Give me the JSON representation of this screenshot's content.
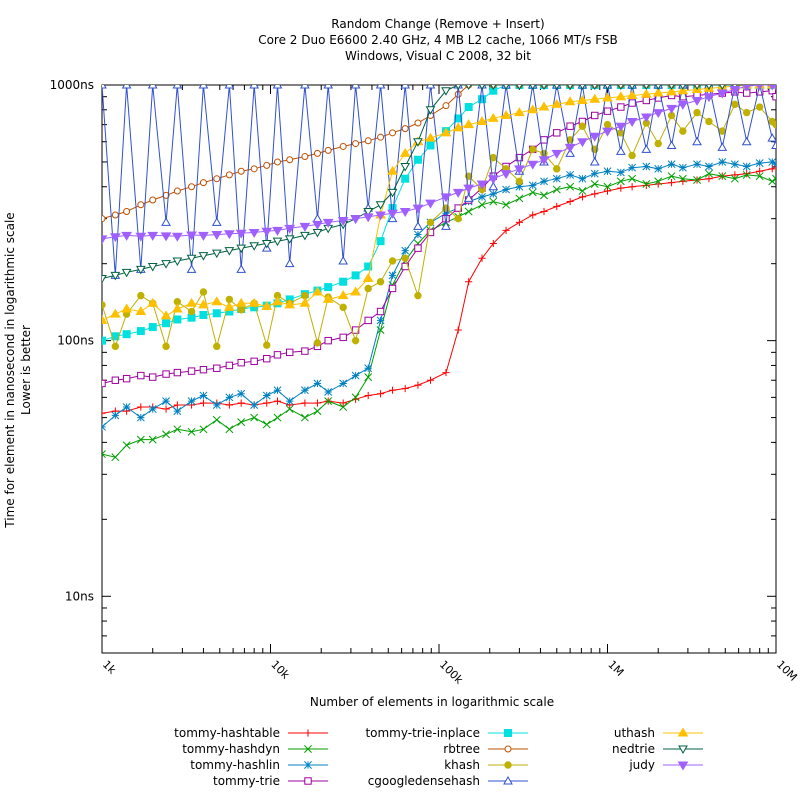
{
  "chart_data": {
    "type": "line",
    "title": [
      "Random Change (Remove + Insert)",
      "Core 2 Duo E6600 2.40 GHz, 4 MB L2 cache, 1066 MT/s FSB",
      "Windows, Visual C 2008, 32 bit"
    ],
    "xlabel": "Number of elements in logarithmic scale",
    "ylabel": [
      "Time for element in nanosecond in logarithmic scale",
      "Lower is better"
    ],
    "x_scale": "log",
    "y_scale": "log",
    "xlim": [
      1000,
      10000000
    ],
    "ylim": [
      6,
      1000
    ],
    "x_ticks": [
      {
        "value": 1000,
        "label": "1k"
      },
      {
        "value": 10000,
        "label": "10k"
      },
      {
        "value": 100000,
        "label": "100k"
      },
      {
        "value": 1000000,
        "label": "1M"
      },
      {
        "value": 10000000,
        "label": "10M"
      }
    ],
    "y_ticks": [
      {
        "value": 10,
        "label": "10ns"
      },
      {
        "value": 100,
        "label": "100ns"
      },
      {
        "value": 1000,
        "label": "1000ns"
      }
    ],
    "grid": false,
    "legend_placement": "bottom",
    "x": [
      1000,
      1200,
      1400,
      1700,
      2000,
      2400,
      2800,
      3400,
      4000,
      4800,
      5700,
      6700,
      8000,
      9500,
      11000,
      13000,
      16000,
      19000,
      22000,
      27000,
      32000,
      38000,
      45000,
      53000,
      63000,
      75000,
      89000,
      110000,
      130000,
      150000,
      180000,
      210000,
      250000,
      300000,
      360000,
      420000,
      500000,
      600000,
      710000,
      840000,
      1000000,
      1200000,
      1400000,
      1700000,
      2000000,
      2400000,
      2800000,
      3400000,
      4000000,
      4800000,
      5700000,
      6700000,
      8000000,
      9500000,
      10000000
    ],
    "series": [
      {
        "name": "tommy-hashtable",
        "color": "#ff0000",
        "marker": "plus",
        "values": [
          52,
          53,
          53,
          55,
          55,
          54,
          56,
          56,
          57,
          57,
          56,
          57,
          56,
          57,
          58,
          56,
          57,
          57,
          58,
          57,
          59,
          61,
          62,
          64,
          65,
          67,
          70,
          75,
          110,
          170,
          210,
          240,
          270,
          290,
          310,
          320,
          335,
          350,
          365,
          375,
          385,
          395,
          400,
          405,
          410,
          415,
          420,
          425,
          430,
          440,
          445,
          450,
          460,
          470,
          480
        ]
      },
      {
        "name": "tommy-hashdyn",
        "color": "#00a000",
        "marker": "x",
        "values": [
          36,
          35,
          39,
          41,
          41,
          43,
          45,
          44,
          45,
          49,
          45,
          48,
          50,
          47,
          50,
          54,
          50,
          53,
          58,
          55,
          60,
          72,
          110,
          165,
          205,
          240,
          270,
          290,
          305,
          320,
          340,
          350,
          340,
          360,
          380,
          370,
          390,
          400,
          385,
          410,
          400,
          420,
          430,
          410,
          420,
          440,
          430,
          425,
          450,
          440,
          430,
          445,
          440,
          420,
          430
        ]
      },
      {
        "name": "tommy-hashlin",
        "color": "#0080c0",
        "marker": "star",
        "values": [
          46,
          51,
          55,
          50,
          54,
          58,
          53,
          58,
          61,
          56,
          60,
          62,
          56,
          61,
          64,
          58,
          64,
          68,
          63,
          68,
          73,
          78,
          120,
          180,
          225,
          260,
          290,
          315,
          330,
          350,
          365,
          375,
          390,
          400,
          405,
          420,
          430,
          445,
          430,
          450,
          460,
          455,
          475,
          480,
          470,
          490,
          475,
          490,
          480,
          500,
          490,
          480,
          495,
          500,
          490
        ]
      },
      {
        "name": "tommy-trie",
        "color": "#a000a0",
        "marker": "square",
        "values": [
          68,
          70,
          71,
          73,
          72,
          74,
          75,
          76,
          77,
          78,
          80,
          82,
          83,
          85,
          88,
          90,
          91,
          95,
          100,
          103,
          110,
          120,
          130,
          160,
          195,
          230,
          265,
          300,
          330,
          355,
          395,
          440,
          480,
          520,
          560,
          610,
          650,
          690,
          720,
          760,
          790,
          820,
          850,
          870,
          890,
          910,
          900,
          910,
          920,
          930,
          940,
          930,
          940,
          950,
          900
        ]
      },
      {
        "name": "tommy-trie-inplace",
        "color": "#00e0e0",
        "marker": "filled-square",
        "values": [
          100,
          104,
          106,
          109,
          113,
          117,
          121,
          123,
          126,
          128,
          130,
          133,
          135,
          137,
          140,
          145,
          152,
          157,
          162,
          170,
          180,
          195,
          245,
          330,
          430,
          510,
          580,
          660,
          740,
          820,
          880,
          950,
          1000,
          1000,
          1000,
          1000,
          1000,
          1000,
          1000,
          1000,
          1000,
          1000,
          1000,
          1000,
          1000,
          1000,
          1000,
          1000,
          1000,
          1000,
          1000,
          1000,
          1000,
          1000,
          1000
        ]
      },
      {
        "name": "rbtree",
        "color": "#c05000",
        "marker": "circle",
        "values": [
          300,
          310,
          320,
          340,
          355,
          370,
          385,
          400,
          415,
          430,
          445,
          460,
          470,
          485,
          500,
          510,
          525,
          540,
          555,
          575,
          590,
          605,
          625,
          650,
          675,
          710,
          760,
          830,
          920,
          1000,
          1000,
          1000,
          1000,
          1000,
          1000,
          1000,
          1000,
          1000,
          1000,
          1000,
          1000,
          1000,
          1000,
          1000,
          1000,
          1000,
          1000,
          1000,
          1000,
          1000,
          1000,
          1000,
          1000,
          1000,
          1000
        ]
      },
      {
        "name": "khash",
        "color": "#c0b000",
        "marker": "filled-circle",
        "values": [
          138,
          95,
          127,
          150,
          140,
          95,
          142,
          130,
          155,
          95,
          145,
          132,
          140,
          96,
          150,
          140,
          150,
          98,
          148,
          135,
          100,
          160,
          170,
          205,
          210,
          150,
          290,
          330,
          300,
          440,
          390,
          520,
          470,
          420,
          560,
          540,
          470,
          610,
          690,
          560,
          700,
          650,
          530,
          710,
          590,
          760,
          660,
          780,
          720,
          660,
          840,
          780,
          820,
          720,
          700
        ]
      },
      {
        "name": "cgoogledensehash",
        "color": "#3050d0",
        "marker": "triangle",
        "values": [
          1000,
          180,
          1000,
          190,
          1000,
          290,
          1000,
          190,
          1000,
          290,
          1000,
          190,
          1000,
          230,
          1000,
          200,
          1000,
          300,
          1000,
          205,
          1000,
          330,
          1000,
          300,
          1000,
          280,
          1000,
          280,
          1000,
          360,
          1000,
          400,
          1000,
          460,
          1000,
          500,
          1000,
          540,
          1000,
          500,
          1000,
          550,
          1000,
          560,
          1000,
          580,
          1000,
          600,
          1000,
          570,
          1000,
          600,
          1000,
          620,
          580
        ]
      },
      {
        "name": "uthash",
        "color": "#ffc000",
        "marker": "filled-triangle",
        "values": [
          120,
          127,
          133,
          130,
          140,
          125,
          133,
          140,
          138,
          142,
          135,
          140,
          140,
          136,
          142,
          138,
          140,
          155,
          145,
          150,
          155,
          175,
          310,
          460,
          540,
          600,
          620,
          650,
          680,
          700,
          720,
          740,
          760,
          780,
          800,
          820,
          840,
          860,
          870,
          880,
          890,
          900,
          910,
          920,
          930,
          940,
          950,
          960,
          970,
          980,
          990,
          1000,
          1000,
          1000,
          1000
        ]
      },
      {
        "name": "nedtrie",
        "color": "#006040",
        "marker": "down-triangle",
        "values": [
          175,
          180,
          185,
          190,
          195,
          200,
          205,
          210,
          215,
          220,
          225,
          230,
          235,
          240,
          245,
          250,
          258,
          265,
          275,
          285,
          300,
          320,
          340,
          380,
          480,
          600,
          800,
          950,
          1000,
          1000,
          1000,
          1000,
          1000,
          1000,
          1000,
          1000,
          1000,
          1000,
          1000,
          1000,
          1000,
          1000,
          1000,
          1000,
          1000,
          1000,
          1000,
          1000,
          1000,
          1000,
          1000,
          1000,
          1000,
          1000,
          1000
        ]
      },
      {
        "name": "judy",
        "color": "#a060ff",
        "marker": "filled-down-triangle",
        "values": [
          250,
          255,
          258,
          256,
          258,
          257,
          256,
          259,
          258,
          260,
          262,
          263,
          265,
          268,
          270,
          275,
          280,
          285,
          290,
          295,
          300,
          305,
          310,
          315,
          320,
          330,
          345,
          365,
          380,
          395,
          410,
          430,
          450,
          470,
          490,
          510,
          540,
          570,
          600,
          630,
          660,
          690,
          720,
          750,
          780,
          810,
          840,
          870,
          900,
          930,
          960,
          990,
          1000,
          1000,
          1000
        ]
      }
    ]
  }
}
